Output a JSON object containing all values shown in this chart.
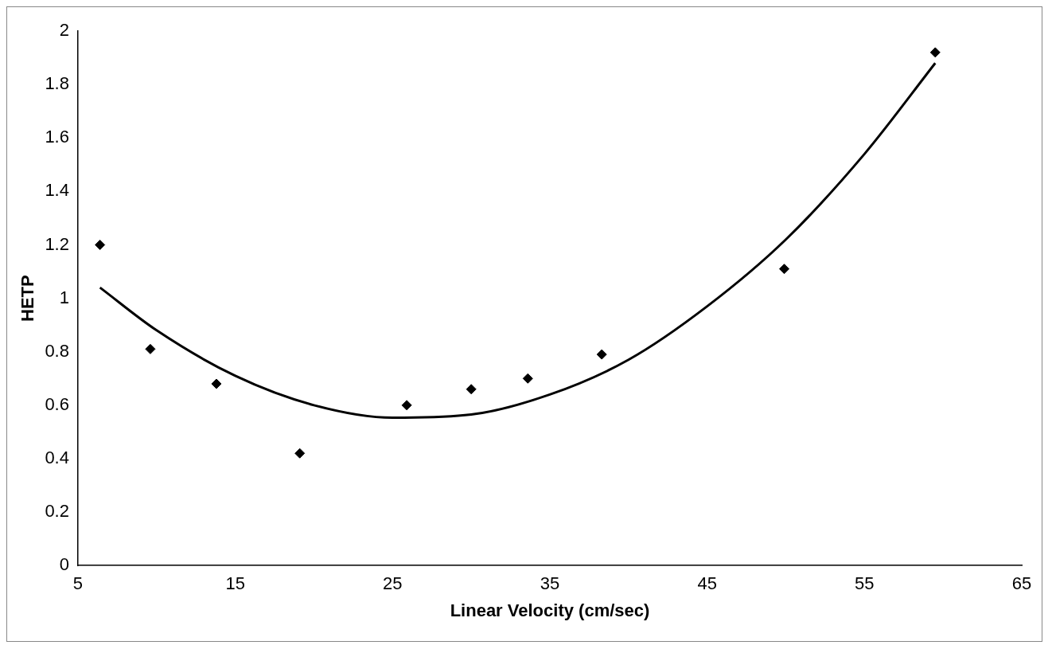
{
  "chart_data": {
    "type": "scatter",
    "xlabel": "Linear Velocity (cm/sec)",
    "ylabel": "HETP",
    "xlim": [
      5,
      65
    ],
    "xticks": [
      5,
      15,
      25,
      35,
      45,
      55,
      65
    ],
    "ylim": [
      0,
      2
    ],
    "yticks": [
      0,
      0.2,
      0.4,
      0.6,
      0.8,
      1,
      1.2,
      1.4,
      1.6,
      1.8,
      2
    ],
    "grid": false,
    "legend": false,
    "marker": "diamond",
    "series": [
      {
        "type": "scatter",
        "color": "#000000",
        "x": [
          6.4,
          9.6,
          13.8,
          19.1,
          25.9,
          30.0,
          33.6,
          38.3,
          49.9,
          59.5
        ],
        "values": [
          1.2,
          0.81,
          0.68,
          0.42,
          0.6,
          0.66,
          0.7,
          0.79,
          1.11,
          1.92
        ]
      },
      {
        "type": "line",
        "color": "#000000",
        "marker": "none",
        "x": [
          6.4,
          10,
          15,
          20,
          25,
          30,
          35,
          40,
          45,
          50,
          55,
          59.5
        ],
        "values": [
          1.04,
          0.88,
          0.71,
          0.6,
          0.553,
          0.565,
          0.64,
          0.77,
          0.97,
          1.22,
          1.54,
          1.88
        ]
      }
    ]
  }
}
